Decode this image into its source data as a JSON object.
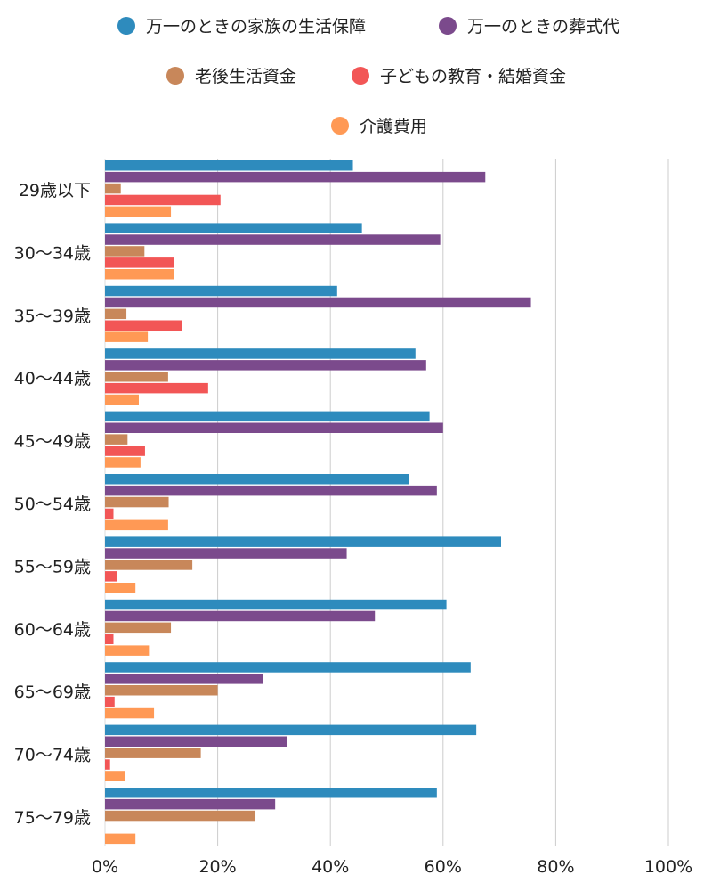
{
  "chart_data": {
    "type": "bar",
    "orientation": "horizontal",
    "categories": [
      "29歳以下",
      "30〜34歳",
      "35〜39歳",
      "40〜44歳",
      "45〜49歳",
      "50〜54歳",
      "55〜59歳",
      "60〜64歳",
      "65〜69歳",
      "70〜74歳",
      "75〜79歳"
    ],
    "series": [
      {
        "name": "万一のときの家族の生活保障",
        "color": "#2e8bbd",
        "values": [
          44,
          45.6,
          41.2,
          55.1,
          57.6,
          54,
          70.3,
          60.6,
          64.9,
          65.9,
          58.9
        ]
      },
      {
        "name": "万一のときの葬式代",
        "color": "#7b4a8c",
        "values": [
          67.5,
          59.5,
          75.6,
          57,
          60,
          58.9,
          42.9,
          47.9,
          28.1,
          32.3,
          30.2
        ]
      },
      {
        "name": "老後生活資金",
        "color": "#c8875a",
        "values": [
          2.8,
          7,
          3.8,
          11.2,
          4,
          11.3,
          15.5,
          11.7,
          20,
          17,
          26.7
        ]
      },
      {
        "name": "子どもの教育・結婚資金",
        "color": "#f25656",
        "values": [
          20.5,
          12.2,
          13.7,
          18.3,
          7.1,
          1.5,
          2.2,
          1.5,
          1.7,
          0.9,
          0
        ]
      },
      {
        "name": "介護費用",
        "color": "#ff9955",
        "values": [
          11.7,
          12.2,
          7.6,
          6,
          6.3,
          11.2,
          5.4,
          7.8,
          8.7,
          3.5,
          5.4
        ]
      }
    ],
    "xlim": [
      0,
      100
    ],
    "xticks": [
      "0%",
      "20%",
      "40%",
      "60%",
      "80%",
      "100%"
    ],
    "grid": true,
    "legend_position": "top",
    "title": "",
    "xlabel": "",
    "ylabel": ""
  }
}
